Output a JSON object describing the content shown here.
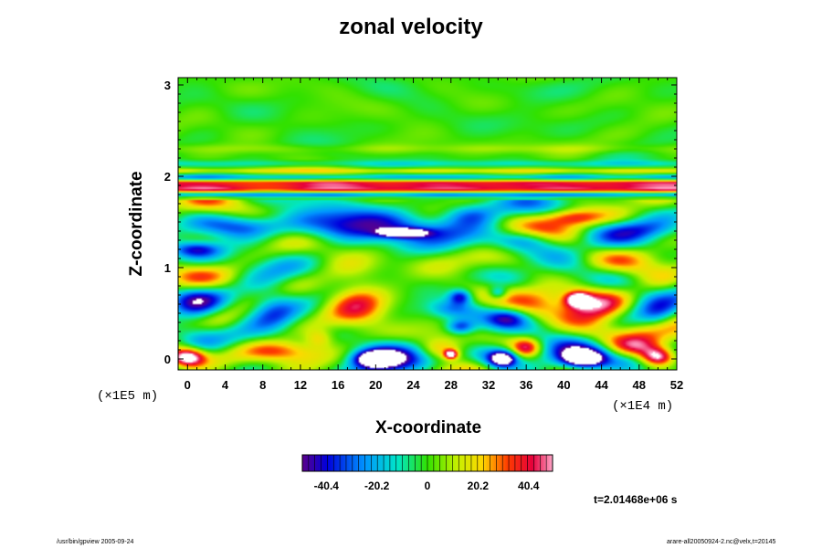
{
  "chart_data": {
    "type": "heatmap",
    "title": "zonal velocity",
    "xlabel": "X-coordinate",
    "ylabel": "Z-coordinate",
    "x_unit_label": "(×1E4 m)",
    "z_unit_label": "(×1E5 m)",
    "x_ticks": [
      "0",
      "4",
      "8",
      "12",
      "16",
      "20",
      "24",
      "28",
      "32",
      "36",
      "40",
      "44",
      "48",
      "52"
    ],
    "y_ticks": [
      "0",
      "1",
      "2",
      "3"
    ],
    "xlim": [
      -1,
      52
    ],
    "ylim": [
      -0.12,
      3.08
    ],
    "colorbar_ticks": [
      "-40.4",
      "-20.2",
      "0",
      "20.2",
      "40.4"
    ],
    "colorbar_range": [
      -50,
      50
    ],
    "grid": false,
    "time_label": "t=2.01468e+06 s",
    "features": [
      {
        "kind": "band",
        "z": 1.87,
        "width": 0.05,
        "value": 42
      },
      {
        "kind": "band",
        "z": 1.93,
        "width": 0.03,
        "value": 28
      },
      {
        "kind": "band",
        "z": 1.8,
        "width": 0.025,
        "value": -30
      },
      {
        "kind": "band",
        "z": 1.99,
        "width": 0.03,
        "value": -18
      },
      {
        "kind": "band",
        "z": 2.06,
        "width": 0.03,
        "value": 16
      },
      {
        "kind": "band",
        "z": 2.14,
        "width": 0.035,
        "value": -10
      },
      {
        "kind": "band",
        "z": 2.3,
        "width": 0.05,
        "value": 6
      },
      {
        "kind": "blob",
        "x": 20,
        "z": 1.45,
        "rx": 9,
        "rz": 0.17,
        "value": -42
      },
      {
        "kind": "blob",
        "x": 23,
        "z": 1.38,
        "rx": 2.5,
        "rz": 0.05,
        "value": -55
      },
      {
        "kind": "blob",
        "x": 6,
        "z": 1.45,
        "rx": 4,
        "rz": 0.12,
        "value": -25
      },
      {
        "kind": "blob",
        "x": 30,
        "z": 1.58,
        "rx": 3,
        "rz": 0.12,
        "value": -28
      },
      {
        "kind": "blob",
        "x": 36,
        "z": 1.3,
        "rx": 3,
        "rz": 0.1,
        "value": -20
      },
      {
        "kind": "blob",
        "x": 41,
        "z": 1.55,
        "rx": 3,
        "rz": 0.09,
        "value": 30
      },
      {
        "kind": "blob",
        "x": 48,
        "z": 1.42,
        "rx": 4,
        "rz": 0.1,
        "value": -15
      },
      {
        "kind": "blob",
        "x": 1,
        "z": 1.2,
        "rx": 2.5,
        "rz": 0.08,
        "value": -30
      },
      {
        "kind": "blob",
        "x": 18,
        "z": 0.62,
        "rx": 3.2,
        "rz": 0.27,
        "value": 38
      },
      {
        "kind": "blob",
        "x": 9,
        "z": 0.55,
        "rx": 2.8,
        "rz": 0.26,
        "value": -32
      },
      {
        "kind": "blob",
        "x": 1,
        "z": 0.5,
        "rx": 2.5,
        "rz": 0.25,
        "value": -25
      },
      {
        "kind": "blob",
        "x": 43.5,
        "z": 0.5,
        "rx": 3.5,
        "rz": 0.22,
        "value": 46
      },
      {
        "kind": "blob",
        "x": 41.5,
        "z": 0.65,
        "rx": 1.3,
        "rz": 0.08,
        "value": 55
      },
      {
        "kind": "blob",
        "x": 37,
        "z": 0.75,
        "rx": 3,
        "rz": 0.25,
        "value": 15
      },
      {
        "kind": "blob",
        "x": 28,
        "z": 0.55,
        "rx": 2.5,
        "rz": 0.1,
        "value": -20
      },
      {
        "kind": "blob",
        "x": 29,
        "z": 0.35,
        "rx": 1.5,
        "rz": 0.08,
        "value": -35
      },
      {
        "kind": "blob",
        "x": 34,
        "z": 0.45,
        "rx": 2,
        "rz": 0.1,
        "value": -25
      },
      {
        "kind": "blob",
        "x": 29,
        "z": 0.68,
        "rx": 1.2,
        "rz": 0.08,
        "value": -40
      },
      {
        "kind": "blob",
        "x": 33,
        "z": 0.72,
        "rx": 1,
        "rz": 0.07,
        "value": -30
      },
      {
        "kind": "blob",
        "x": 21,
        "z": 0.05,
        "rx": 4,
        "rz": 0.17,
        "value": -42
      },
      {
        "kind": "blob",
        "x": 20,
        "z": 0.0,
        "rx": 2.2,
        "rz": 0.09,
        "value": -58
      },
      {
        "kind": "blob",
        "x": 42,
        "z": 0.05,
        "rx": 4,
        "rz": 0.17,
        "value": -38
      },
      {
        "kind": "blob",
        "x": 42,
        "z": 0.0,
        "rx": 2,
        "rz": 0.09,
        "value": -58
      },
      {
        "kind": "blob",
        "x": 33,
        "z": 0.03,
        "rx": 2.5,
        "rz": 0.14,
        "value": -32
      },
      {
        "kind": "blob",
        "x": 33.5,
        "z": 0.0,
        "rx": 1.3,
        "rz": 0.08,
        "value": -55
      },
      {
        "kind": "blob",
        "x": 10,
        "z": 0.08,
        "rx": 4,
        "rz": 0.12,
        "value": 38
      },
      {
        "kind": "blob",
        "x": 0,
        "z": 0.02,
        "rx": 1.8,
        "rz": 0.1,
        "value": 58
      },
      {
        "kind": "blob",
        "x": 50,
        "z": 0.02,
        "rx": 1.8,
        "rz": 0.1,
        "value": 58
      },
      {
        "kind": "blob",
        "x": 48,
        "z": 0.12,
        "rx": 3,
        "rz": 0.12,
        "value": 35
      },
      {
        "kind": "blob",
        "x": 27,
        "z": 0.1,
        "rx": 2.5,
        "rz": 0.12,
        "value": 35
      },
      {
        "kind": "blob",
        "x": 28,
        "z": 0.05,
        "rx": 0.7,
        "rz": 0.05,
        "value": 55
      },
      {
        "kind": "blob",
        "x": 36,
        "z": 0.12,
        "rx": 1.5,
        "rz": 0.1,
        "value": 38
      },
      {
        "kind": "blob",
        "x": 14,
        "z": 0.22,
        "rx": 1.5,
        "rz": 0.1,
        "value": 20
      },
      {
        "kind": "blob",
        "x": 50,
        "z": 0.45,
        "rx": 2,
        "rz": 0.15,
        "value": -20
      }
    ]
  },
  "footer": {
    "left": "/usr/bin/gpview 2005-09-24",
    "right": "arare-all20050924-2.nc@velx,t=20145"
  }
}
